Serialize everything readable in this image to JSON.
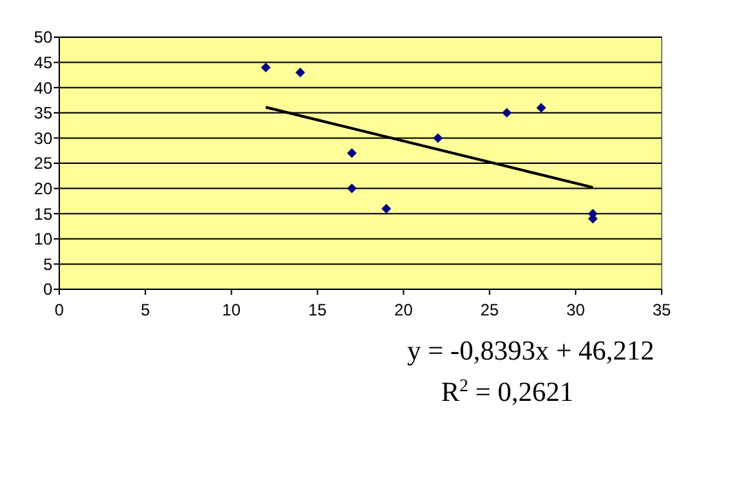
{
  "chart_data": {
    "type": "scatter",
    "xlim": [
      0,
      35
    ],
    "xticks": [
      0,
      5,
      10,
      15,
      20,
      25,
      30,
      35
    ],
    "ylim": [
      0,
      50
    ],
    "yticks": [
      0,
      5,
      10,
      15,
      20,
      25,
      30,
      35,
      40,
      45,
      50
    ],
    "grid": "y",
    "marker": "diamond",
    "series": [
      {
        "type": "scatter",
        "color": "#000080",
        "x": [
          12,
          14,
          17,
          17,
          19,
          22,
          26,
          28,
          31,
          31
        ],
        "values": [
          44,
          43,
          27,
          20,
          16,
          30,
          35,
          36,
          15,
          14
        ]
      },
      {
        "type": "line",
        "color": "#000000",
        "marker": "none",
        "line_style": "solid",
        "x": [
          12,
          31
        ],
        "values": [
          36.1,
          20.2
        ]
      }
    ],
    "annotations": [
      "y = -0,8393x + 46,212",
      "R$^{2}$ = 0,2621"
    ]
  }
}
